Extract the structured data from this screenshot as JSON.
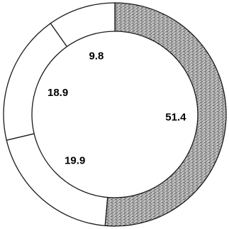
{
  "chart_data": {
    "type": "pie",
    "style": "donut",
    "start_angle_deg": 0,
    "direction": "clockwise",
    "slices": [
      {
        "value": 51.4,
        "label": "51.4",
        "fill": "stipple-gray"
      },
      {
        "value": 19.9,
        "label": "19.9",
        "fill": "white"
      },
      {
        "value": 18.9,
        "label": "18.9",
        "fill": "white"
      },
      {
        "value": 9.8,
        "label": "9.8",
        "fill": "white"
      }
    ]
  },
  "colors": {
    "stroke": "#1a1a1a",
    "background": "#ffffff",
    "stipple_dark": "#555555",
    "stipple_mid": "#8a8a8a",
    "stipple_light": "#c8c8c8"
  }
}
